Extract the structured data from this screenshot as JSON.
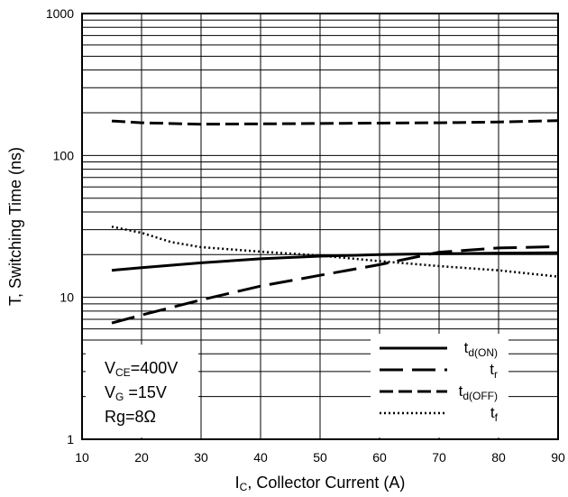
{
  "chart_data": {
    "type": "line",
    "xlabel_main": "I",
    "xlabel_sub": "C",
    "xlabel_rest": ", Collector Current (A)",
    "ylabel": "T, Switching Time (ns)",
    "xlim": [
      10,
      90
    ],
    "ylim": [
      1,
      1000
    ],
    "y_scale": "log",
    "grid": true,
    "x_ticks": [
      10,
      20,
      30,
      40,
      50,
      60,
      70,
      80,
      90
    ],
    "y_ticks": [
      {
        "value": 1,
        "label": "1"
      },
      {
        "value": 10,
        "label": "10"
      },
      {
        "value": 100,
        "label": "100"
      },
      {
        "value": 1000,
        "label": "1000"
      }
    ],
    "series": [
      {
        "key": "td_on",
        "name_main": "t",
        "name_sub": "d(ON)",
        "style": "solid",
        "x": [
          15,
          20,
          30,
          40,
          50,
          60,
          70,
          80,
          90
        ],
        "y": [
          15.5,
          16.2,
          17.5,
          18.7,
          19.5,
          20.0,
          20.3,
          20.5,
          20.6
        ]
      },
      {
        "key": "tr",
        "name_main": "t",
        "name_sub": "r",
        "style": "longdash",
        "x": [
          15,
          20,
          30,
          40,
          50,
          60,
          65,
          70,
          80,
          90
        ],
        "y": [
          6.6,
          7.5,
          9.6,
          12.0,
          14.3,
          17.0,
          18.8,
          20.8,
          22.3,
          22.8
        ]
      },
      {
        "key": "td_off",
        "name_main": "t",
        "name_sub": "d(OFF)",
        "style": "shortdash",
        "x": [
          15,
          20,
          30,
          40,
          50,
          60,
          70,
          80,
          90
        ],
        "y": [
          175,
          170,
          166,
          167,
          168,
          169,
          170,
          172,
          176
        ]
      },
      {
        "key": "tf",
        "name_main": "t",
        "name_sub": "f",
        "style": "dotted",
        "x": [
          15,
          20,
          25,
          30,
          40,
          50,
          60,
          70,
          80,
          90
        ],
        "y": [
          31.5,
          28.5,
          24.5,
          22.6,
          21.0,
          19.7,
          18.0,
          16.6,
          15.5,
          14.0
        ]
      }
    ],
    "conditions": [
      {
        "main": "V",
        "sub": "CE",
        "rest": "=400V"
      },
      {
        "main": "V",
        "sub": "G",
        "rest": " =15V"
      },
      {
        "main": "Rg=8Ω",
        "sub": "",
        "rest": ""
      }
    ],
    "legend_position": "bottom-right",
    "conditions_position": "bottom-left"
  }
}
